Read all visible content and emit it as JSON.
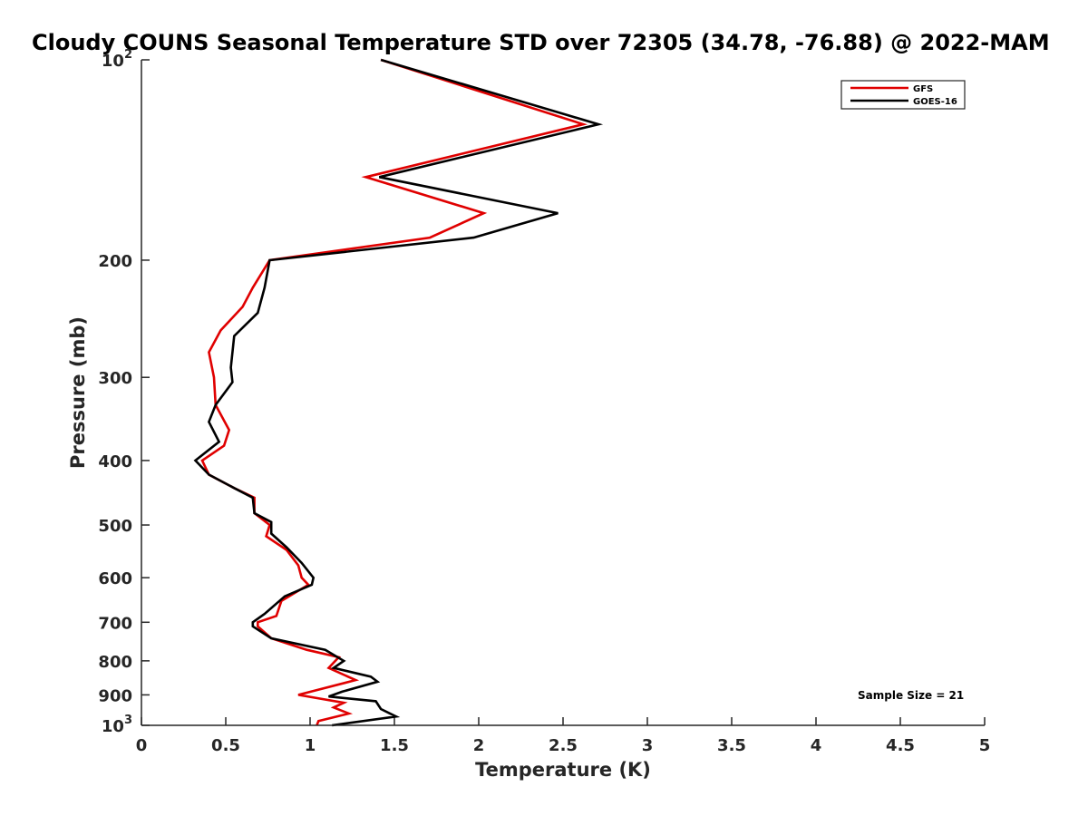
{
  "chart_data": {
    "type": "line",
    "title": "Cloudy COUNS Seasonal Temperature STD over 72305 (34.78, -76.88) @ 2022-MAM",
    "xlabel": "Temperature (K)",
    "ylabel": "Pressure (mb)",
    "xlim": [
      0,
      5
    ],
    "ylim": [
      100,
      1000
    ],
    "yscale": "log",
    "y_reversed": true,
    "x_ticks": [
      0,
      0.5,
      1,
      1.5,
      2,
      2.5,
      3,
      3.5,
      4,
      4.5,
      5
    ],
    "x_tick_labels": [
      "0",
      "0.5",
      "1",
      "1.5",
      "2",
      "2.5",
      "3",
      "3.5",
      "4",
      "4.5",
      "5"
    ],
    "y_ticks": [
      100,
      200,
      300,
      400,
      500,
      600,
      700,
      800,
      900,
      1000
    ],
    "y_tick_labels": [
      {
        "base": "10",
        "exp": "2"
      },
      {
        "base": "200"
      },
      {
        "base": "300"
      },
      {
        "base": "400"
      },
      {
        "base": "500"
      },
      {
        "base": "600"
      },
      {
        "base": "700"
      },
      {
        "base": "800"
      },
      {
        "base": "900"
      },
      {
        "base": "10",
        "exp": "3"
      }
    ],
    "legend_position": "top-right",
    "annotation": "Sample Size = 21",
    "series": [
      {
        "name": "GFS",
        "color": "#e00000",
        "points": [
          [
            1.42,
            100
          ],
          [
            2.62,
            125
          ],
          [
            1.33,
            150
          ],
          [
            2.03,
            170
          ],
          [
            1.71,
            185
          ],
          [
            0.76,
            200
          ],
          [
            0.66,
            220
          ],
          [
            0.6,
            235
          ],
          [
            0.47,
            255
          ],
          [
            0.4,
            275
          ],
          [
            0.43,
            300
          ],
          [
            0.44,
            330
          ],
          [
            0.52,
            360
          ],
          [
            0.49,
            380
          ],
          [
            0.36,
            400
          ],
          [
            0.4,
            420
          ],
          [
            0.55,
            440
          ],
          [
            0.67,
            455
          ],
          [
            0.67,
            480
          ],
          [
            0.76,
            500
          ],
          [
            0.74,
            520
          ],
          [
            0.86,
            545
          ],
          [
            0.93,
            575
          ],
          [
            0.95,
            600
          ],
          [
            0.99,
            615
          ],
          [
            0.83,
            650
          ],
          [
            0.8,
            685
          ],
          [
            0.69,
            700
          ],
          [
            0.69,
            710
          ],
          [
            0.77,
            740
          ],
          [
            0.98,
            770
          ],
          [
            1.17,
            790
          ],
          [
            1.11,
            820
          ],
          [
            1.27,
            855
          ],
          [
            0.93,
            900
          ],
          [
            1.2,
            925
          ],
          [
            1.14,
            940
          ],
          [
            1.23,
            960
          ],
          [
            1.05,
            985
          ],
          [
            1.04,
            1000
          ]
        ]
      },
      {
        "name": "GOES-16",
        "color": "#000000",
        "points": [
          [
            1.42,
            100
          ],
          [
            2.71,
            125
          ],
          [
            1.41,
            150
          ],
          [
            2.47,
            170
          ],
          [
            1.97,
            185
          ],
          [
            0.76,
            200
          ],
          [
            0.73,
            220
          ],
          [
            0.69,
            240
          ],
          [
            0.55,
            260
          ],
          [
            0.53,
            290
          ],
          [
            0.54,
            305
          ],
          [
            0.44,
            330
          ],
          [
            0.4,
            350
          ],
          [
            0.46,
            375
          ],
          [
            0.32,
            400
          ],
          [
            0.4,
            420
          ],
          [
            0.55,
            440
          ],
          [
            0.66,
            455
          ],
          [
            0.67,
            480
          ],
          [
            0.77,
            495
          ],
          [
            0.77,
            515
          ],
          [
            0.86,
            540
          ],
          [
            0.95,
            570
          ],
          [
            1.02,
            600
          ],
          [
            1.01,
            615
          ],
          [
            0.85,
            640
          ],
          [
            0.73,
            680
          ],
          [
            0.66,
            700
          ],
          [
            0.66,
            710
          ],
          [
            0.77,
            740
          ],
          [
            1.09,
            770
          ],
          [
            1.2,
            800
          ],
          [
            1.14,
            820
          ],
          [
            1.36,
            845
          ],
          [
            1.4,
            860
          ],
          [
            1.19,
            890
          ],
          [
            1.11,
            905
          ],
          [
            1.39,
            920
          ],
          [
            1.42,
            945
          ],
          [
            1.51,
            970
          ],
          [
            1.13,
            1000
          ]
        ]
      }
    ]
  }
}
